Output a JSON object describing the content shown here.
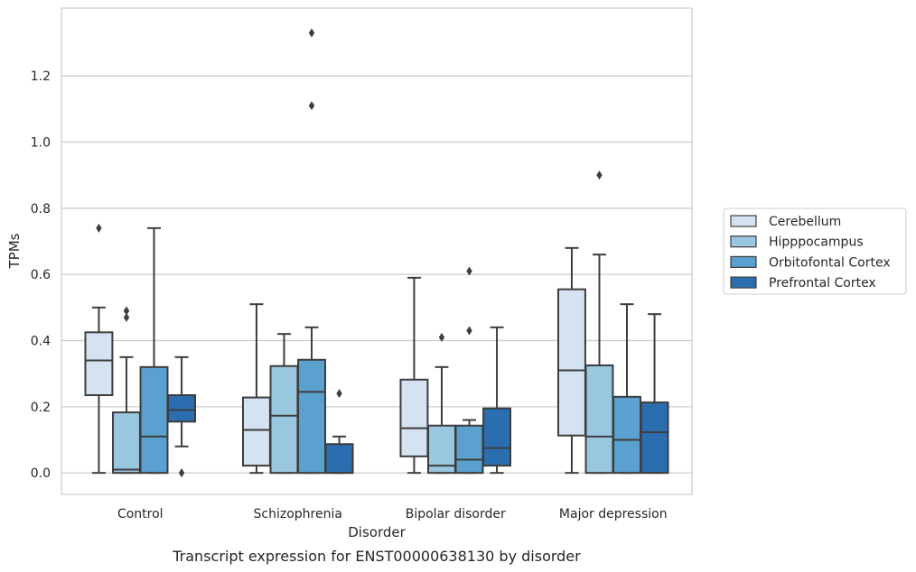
{
  "chart_data": {
    "type": "boxplot",
    "title": "",
    "caption": "Transcript expression for ENST00000638130 by disorder",
    "xlabel": "Disorder",
    "ylabel": "TPMs",
    "ylim": [
      -0.065,
      1.405
    ],
    "yticks": [
      0.0,
      0.2,
      0.4,
      0.6,
      0.8,
      1.0,
      1.2
    ],
    "grid": "horizontal",
    "legend_position": "outside-right",
    "categories": [
      "Control",
      "Schizophrenia",
      "Bipolar disorder",
      "Major depression"
    ],
    "series": [
      {
        "name": "Cerebellum",
        "color": "#d4e2f1",
        "boxes": [
          {
            "whisker_low": 0.0,
            "q1": 0.235,
            "median": 0.34,
            "q3": 0.425,
            "whisker_high": 0.5,
            "outliers": [
              0.74
            ]
          },
          {
            "whisker_low": 0.0,
            "q1": 0.022,
            "median": 0.13,
            "q3": 0.228,
            "whisker_high": 0.51,
            "outliers": []
          },
          {
            "whisker_low": 0.0,
            "q1": 0.05,
            "median": 0.135,
            "q3": 0.282,
            "whisker_high": 0.59,
            "outliers": []
          },
          {
            "whisker_low": 0.0,
            "q1": 0.113,
            "median": 0.31,
            "q3": 0.555,
            "whisker_high": 0.68,
            "outliers": []
          }
        ]
      },
      {
        "name": "Hipppocampus",
        "color": "#9ac7e0",
        "boxes": [
          {
            "whisker_low": 0.0,
            "q1": 0.0,
            "median": 0.01,
            "q3": 0.183,
            "whisker_high": 0.35,
            "outliers": [
              0.47,
              0.49
            ]
          },
          {
            "whisker_low": 0.0,
            "q1": 0.0,
            "median": 0.173,
            "q3": 0.323,
            "whisker_high": 0.42,
            "outliers": []
          },
          {
            "whisker_low": 0.0,
            "q1": 0.0,
            "median": 0.022,
            "q3": 0.143,
            "whisker_high": 0.32,
            "outliers": [
              0.41
            ]
          },
          {
            "whisker_low": 0.0,
            "q1": 0.0,
            "median": 0.11,
            "q3": 0.325,
            "whisker_high": 0.66,
            "outliers": [
              0.9
            ]
          }
        ]
      },
      {
        "name": "Orbitofontal Cortex",
        "color": "#5aa1cf",
        "boxes": [
          {
            "whisker_low": 0.0,
            "q1": 0.0,
            "median": 0.11,
            "q3": 0.32,
            "whisker_high": 0.74,
            "outliers": []
          },
          {
            "whisker_low": 0.0,
            "q1": 0.0,
            "median": 0.245,
            "q3": 0.342,
            "whisker_high": 0.44,
            "outliers": [
              1.11,
              1.33
            ]
          },
          {
            "whisker_low": 0.0,
            "q1": 0.0,
            "median": 0.04,
            "q3": 0.143,
            "whisker_high": 0.16,
            "outliers": [
              0.43,
              0.61
            ]
          },
          {
            "whisker_low": 0.0,
            "q1": 0.0,
            "median": 0.1,
            "q3": 0.23,
            "whisker_high": 0.51,
            "outliers": []
          }
        ]
      },
      {
        "name": "Prefrontal Cortex",
        "color": "#2a6eb0",
        "boxes": [
          {
            "whisker_low": 0.08,
            "q1": 0.155,
            "median": 0.19,
            "q3": 0.235,
            "whisker_high": 0.35,
            "outliers": [
              0.0
            ]
          },
          {
            "whisker_low": 0.0,
            "q1": 0.0,
            "median": 0.0,
            "q3": 0.087,
            "whisker_high": 0.11,
            "outliers": [
              0.24
            ]
          },
          {
            "whisker_low": 0.0,
            "q1": 0.022,
            "median": 0.075,
            "q3": 0.195,
            "whisker_high": 0.44,
            "outliers": []
          },
          {
            "whisker_low": 0.0,
            "q1": 0.0,
            "median": 0.123,
            "q3": 0.213,
            "whisker_high": 0.48,
            "outliers": []
          }
        ]
      }
    ]
  }
}
